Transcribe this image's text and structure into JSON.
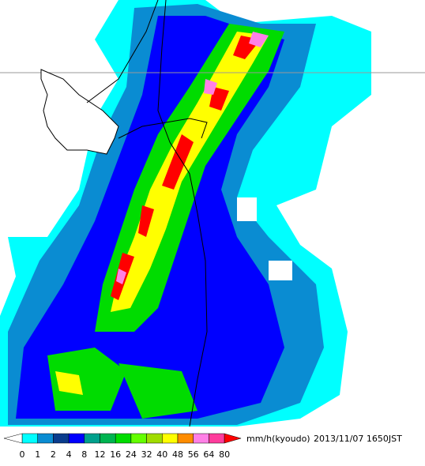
{
  "legend": {
    "ticks": [
      "0",
      "1",
      "2",
      "4",
      "8",
      "12",
      "16",
      "24",
      "32",
      "40",
      "48",
      "56",
      "64",
      "80"
    ],
    "colors": [
      "#00ffff",
      "#0a8cd2",
      "#0a3c8c",
      "#0000ff",
      "#00a08c",
      "#00b450",
      "#00dc00",
      "#64ff00",
      "#a0dc00",
      "#ffff00",
      "#ff8c00",
      "#ff80e6",
      "#ff3c9c"
    ],
    "under_color": "#ffffff",
    "over_color": "#ff0000",
    "unit": "mm/h(kyoudo)",
    "timestamp": "2013/11/07 1650JST"
  }
}
